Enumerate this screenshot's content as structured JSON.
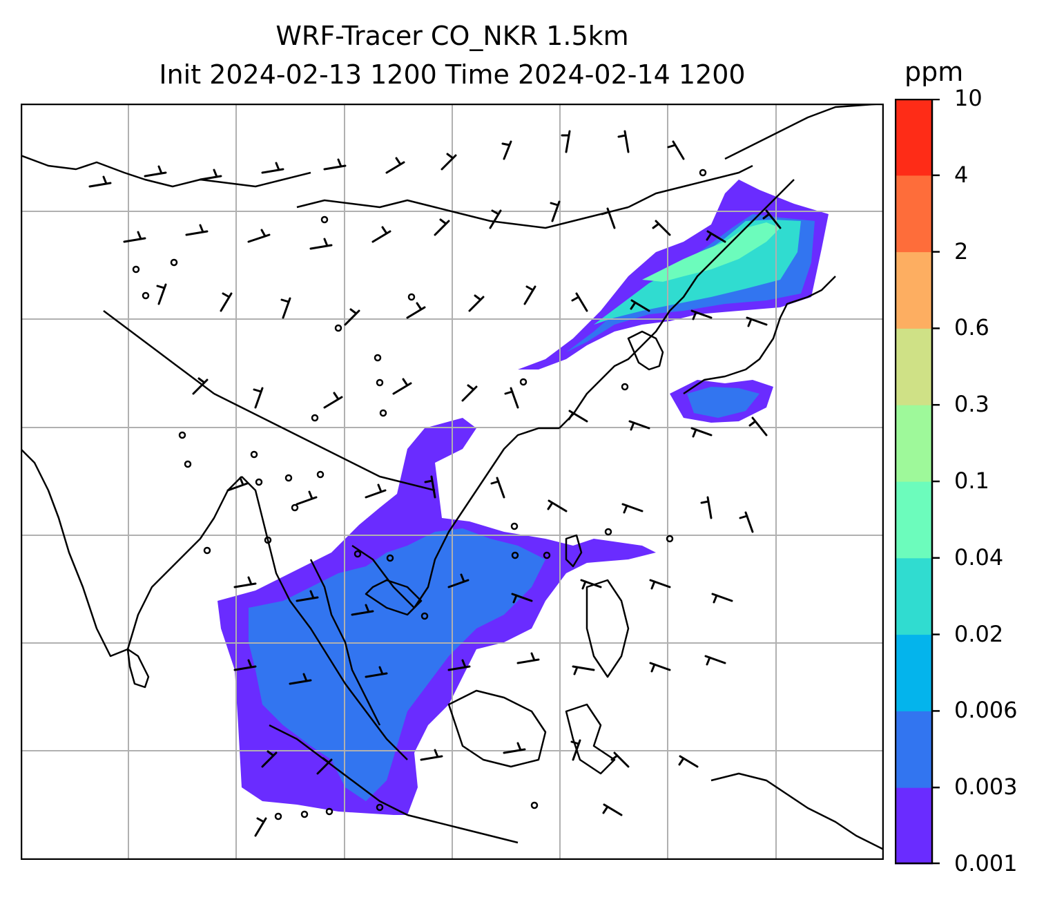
{
  "title": {
    "line1": "WRF-Tracer CO_NKR 1.5km",
    "line2": "Init 2024-02-13 1200 Time 2024-02-14 1200"
  },
  "colorbar": {
    "unit": "ppm",
    "levels": [
      "0.001",
      "0.003",
      "0.006",
      "0.02",
      "0.04",
      "0.1",
      "0.3",
      "0.6",
      "2",
      "4",
      "10"
    ],
    "colors": [
      "#6a2cff",
      "#3275f0",
      "#04b4ec",
      "#30dcd0",
      "#6cfcbc",
      "#9ef99a",
      "#cfe186",
      "#fdae61",
      "#fe6d3a",
      "#fe2c17"
    ]
  },
  "map": {
    "layers": [
      "coastlines",
      "country-borders",
      "gridlines",
      "co-tracer-concentration",
      "wind-barbs",
      "calm-wind-circles"
    ],
    "grid_color": "#b0b0b0",
    "tracer_regions": [
      {
        "name": "south-china-sea-indochina-plume",
        "level_color": "#6a2cff"
      },
      {
        "name": "indochina-core",
        "level_color": "#3275f0"
      },
      {
        "name": "northeast-asia-plume",
        "level_color": "#30dcd0"
      },
      {
        "name": "japan-pacific-plume",
        "level_color": "#3275f0"
      }
    ]
  }
}
